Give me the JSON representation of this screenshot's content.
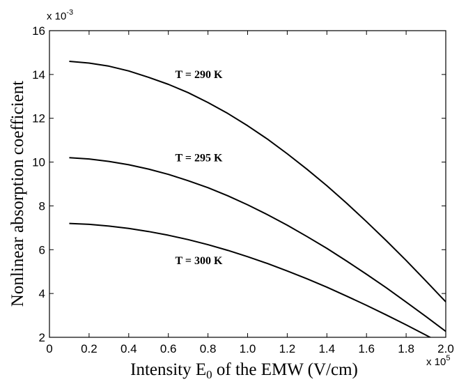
{
  "chart_data": {
    "type": "line",
    "title": "",
    "xlabel": "Intensity E",
    "xlabel_sub": "0",
    "xlabel_rest": " of the EMW (V/cm)",
    "ylabel": "Nonlinear absorption coefficient",
    "x_multiplier": "x 10",
    "x_multiplier_exp": "5",
    "y_multiplier": "x 10",
    "y_multiplier_exp": "-3",
    "xlim": [
      0,
      2.0
    ],
    "ylim": [
      2,
      16
    ],
    "x_ticks": [
      0,
      0.2,
      0.4,
      0.6,
      0.8,
      1.0,
      1.2,
      1.4,
      1.6,
      1.8,
      2.0
    ],
    "x_tick_labels": [
      "0",
      "0.2",
      "0.4",
      "0.6",
      "0.8",
      "1.0",
      "1.2",
      "1.4",
      "1.6",
      "1.8",
      "2.0"
    ],
    "y_ticks": [
      2,
      4,
      6,
      8,
      10,
      12,
      14,
      16
    ],
    "y_tick_labels": [
      "2",
      "4",
      "6",
      "8",
      "10",
      "12",
      "14",
      "16"
    ],
    "grid": false,
    "x": [
      0.1,
      0.2,
      0.3,
      0.4,
      0.5,
      0.6,
      0.7,
      0.8,
      0.9,
      1.0,
      1.1,
      1.2,
      1.3,
      1.4,
      1.5,
      1.6,
      1.7,
      1.8,
      1.9,
      2.0
    ],
    "series": [
      {
        "name": "T = 290 K",
        "values": [
          14.6,
          14.52,
          14.38,
          14.16,
          13.87,
          13.55,
          13.17,
          12.72,
          12.22,
          11.66,
          11.05,
          10.38,
          9.67,
          8.92,
          8.12,
          7.28,
          6.41,
          5.51,
          4.57,
          3.62
        ]
      },
      {
        "name": "T = 295 K",
        "values": [
          10.2,
          10.14,
          10.03,
          9.88,
          9.68,
          9.44,
          9.15,
          8.83,
          8.46,
          8.05,
          7.6,
          7.12,
          6.6,
          6.06,
          5.48,
          4.88,
          4.26,
          3.61,
          2.95,
          2.27
        ]
      },
      {
        "name": "T = 300 K",
        "values": [
          7.2,
          7.16,
          7.08,
          6.97,
          6.83,
          6.66,
          6.46,
          6.23,
          5.97,
          5.68,
          5.37,
          5.03,
          4.67,
          4.29,
          3.88,
          3.46,
          3.02,
          2.57,
          2.1,
          1.62
        ]
      }
    ],
    "annotations": [
      {
        "text": "T = 290 K",
        "x": 1.0,
        "y": 14.0
      },
      {
        "text": "T = 295 K",
        "x": 1.0,
        "y": 10.2
      },
      {
        "text": "T = 300 K",
        "x": 1.0,
        "y": 5.5
      }
    ],
    "line_color": "#000000"
  }
}
